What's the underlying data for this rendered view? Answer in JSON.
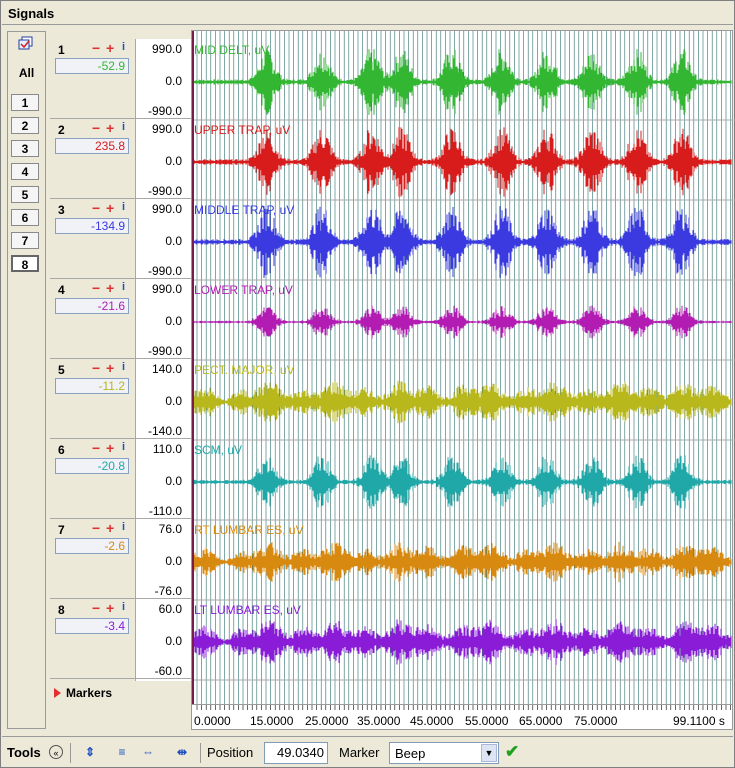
{
  "panel": {
    "title": "Signals"
  },
  "channel_select": {
    "all_label": "All",
    "buttons": [
      "1",
      "2",
      "3",
      "4",
      "5",
      "6",
      "7",
      "8"
    ],
    "active_button": "8"
  },
  "channels": [
    {
      "num": "1",
      "value": "-52.9",
      "scale_max": "990.0",
      "scale_mid": "0.0",
      "scale_min": "-990.0",
      "label": "MID DELT, uV",
      "color": "#33b733",
      "amp": 0.9,
      "env": "burst"
    },
    {
      "num": "2",
      "value": "235.8",
      "scale_max": "990.0",
      "scale_mid": "0.0",
      "scale_min": "-990.0",
      "label": "UPPER TRAP, uV",
      "color": "#d81c1c",
      "amp": 0.95,
      "env": "burst"
    },
    {
      "num": "3",
      "value": "-134.9",
      "scale_max": "990.0",
      "scale_mid": "0.0",
      "scale_min": "-990.0",
      "label": "MIDDLE TRAP, uV",
      "color": "#3a3ae0",
      "amp": 1.0,
      "env": "burst"
    },
    {
      "num": "4",
      "value": "-21.6",
      "scale_max": "990.0",
      "scale_mid": "0.0",
      "scale_min": "-990.0",
      "label": "LOWER TRAP, uV",
      "color": "#b21cb2",
      "amp": 0.45,
      "env": "burst"
    },
    {
      "num": "5",
      "value": "-11.2",
      "scale_max": "140.0",
      "scale_mid": "0.0",
      "scale_min": "-140.0",
      "label": "PECT. MAJOR, uV",
      "color": "#b8b81c",
      "amp": 0.65,
      "env": "flat"
    },
    {
      "num": "6",
      "value": "-20.8",
      "scale_max": "110.0",
      "scale_mid": "0.0",
      "scale_min": "-110.0",
      "label": "SCM, uV",
      "color": "#20a8a8",
      "amp": 0.75,
      "env": "burst"
    },
    {
      "num": "7",
      "value": "-2.6",
      "scale_max": "76.0",
      "scale_mid": "0.0",
      "scale_min": "-76.0",
      "label": "RT LUMBAR ES, uV",
      "color": "#d88a10",
      "amp": 0.6,
      "env": "flat"
    },
    {
      "num": "8",
      "value": "-3.4",
      "scale_max": "60.0",
      "scale_mid": "0.0",
      "scale_min": "-60.0",
      "label": "LT LUMBAR ES, uV",
      "color": "#8a1cd8",
      "amp": 0.7,
      "env": "flat"
    }
  ],
  "markers": {
    "label": "Markers"
  },
  "x_axis": {
    "ticks": [
      "0.0000",
      "15.0000",
      "25.0000",
      "35.0000",
      "45.0000",
      "55.0000",
      "65.0000",
      "75.0000"
    ],
    "end_label": "99.1100 s"
  },
  "toolbar": {
    "tools_label": "Tools",
    "position_label": "Position",
    "position_value": "49.0340",
    "marker_label": "Marker",
    "marker_value": "Beep"
  }
}
